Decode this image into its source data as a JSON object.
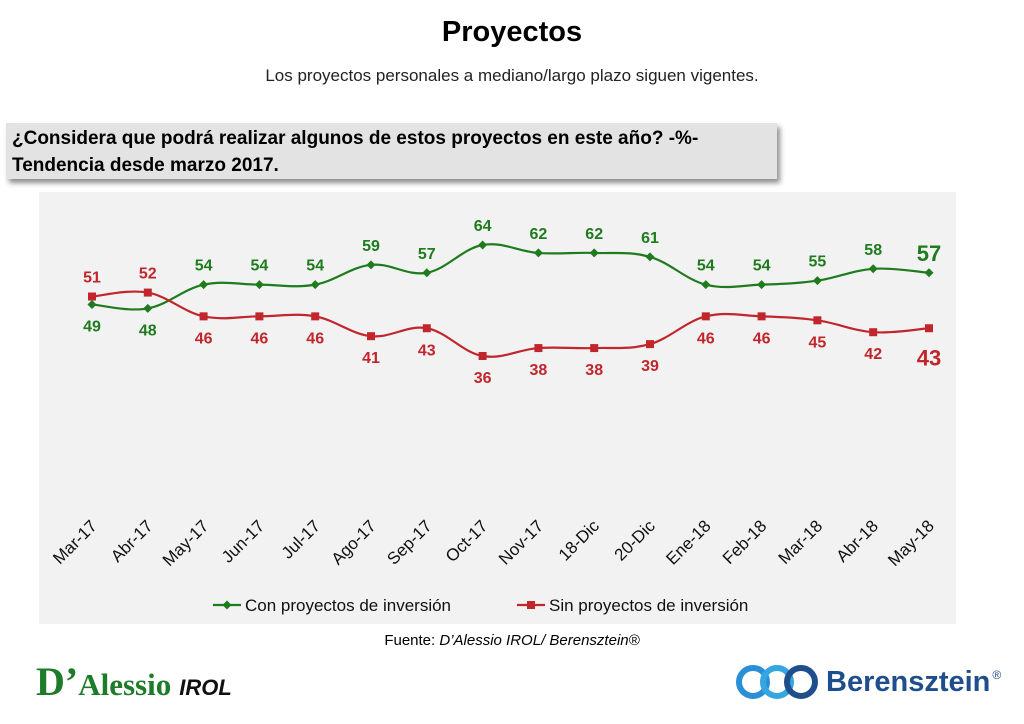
{
  "header": {
    "title": "Proyectos",
    "subtitle": "Los proyectos personales a mediano/largo plazo siguen vigentes."
  },
  "question": {
    "line1": "¿Considera que podrá realizar algunos de estos proyectos en este año? -%-",
    "line2": "Tendencia desde marzo 2017."
  },
  "source": {
    "prefix": "Fuente: ",
    "text": "D’Alessio IROL/ Berensztein®"
  },
  "logos": {
    "left_d": "D’",
    "left_name": "Alessio",
    "left_suffix": "IROL",
    "right_name": "Berensztein",
    "right_mark": "®"
  },
  "colors": {
    "green": "#1e7b1e",
    "red": "#c0262c",
    "plot_bg": "#f2f2f2"
  },
  "chart_data": {
    "type": "line",
    "categories": [
      "Mar-17",
      "Abr-17",
      "May-17",
      "Jun-17",
      "Jul-17",
      "Ago-17",
      "Sep-17",
      "Oct-17",
      "Nov-17",
      "18-Dic",
      "20-Dic",
      "Ene-18",
      "Feb-18",
      "Mar-18",
      "Abr-18",
      "May-18"
    ],
    "series": [
      {
        "name": "Con proyectos de inversión",
        "color": "#1e7b1e",
        "marker": "diamond",
        "values": [
          49,
          48,
          54,
          54,
          54,
          59,
          57,
          64,
          62,
          62,
          61,
          54,
          54,
          55,
          58,
          57
        ]
      },
      {
        "name": "Sin proyectos de inversión",
        "color": "#c0262c",
        "marker": "square",
        "values": [
          51,
          52,
          46,
          46,
          46,
          41,
          43,
          36,
          38,
          38,
          39,
          46,
          46,
          45,
          42,
          43
        ]
      }
    ],
    "title": "",
    "xlabel": "",
    "ylabel": "",
    "ylim": [
      30,
      70
    ],
    "grid": false,
    "legend": "bottom",
    "smooth": true,
    "last_point_emphasized": true
  }
}
